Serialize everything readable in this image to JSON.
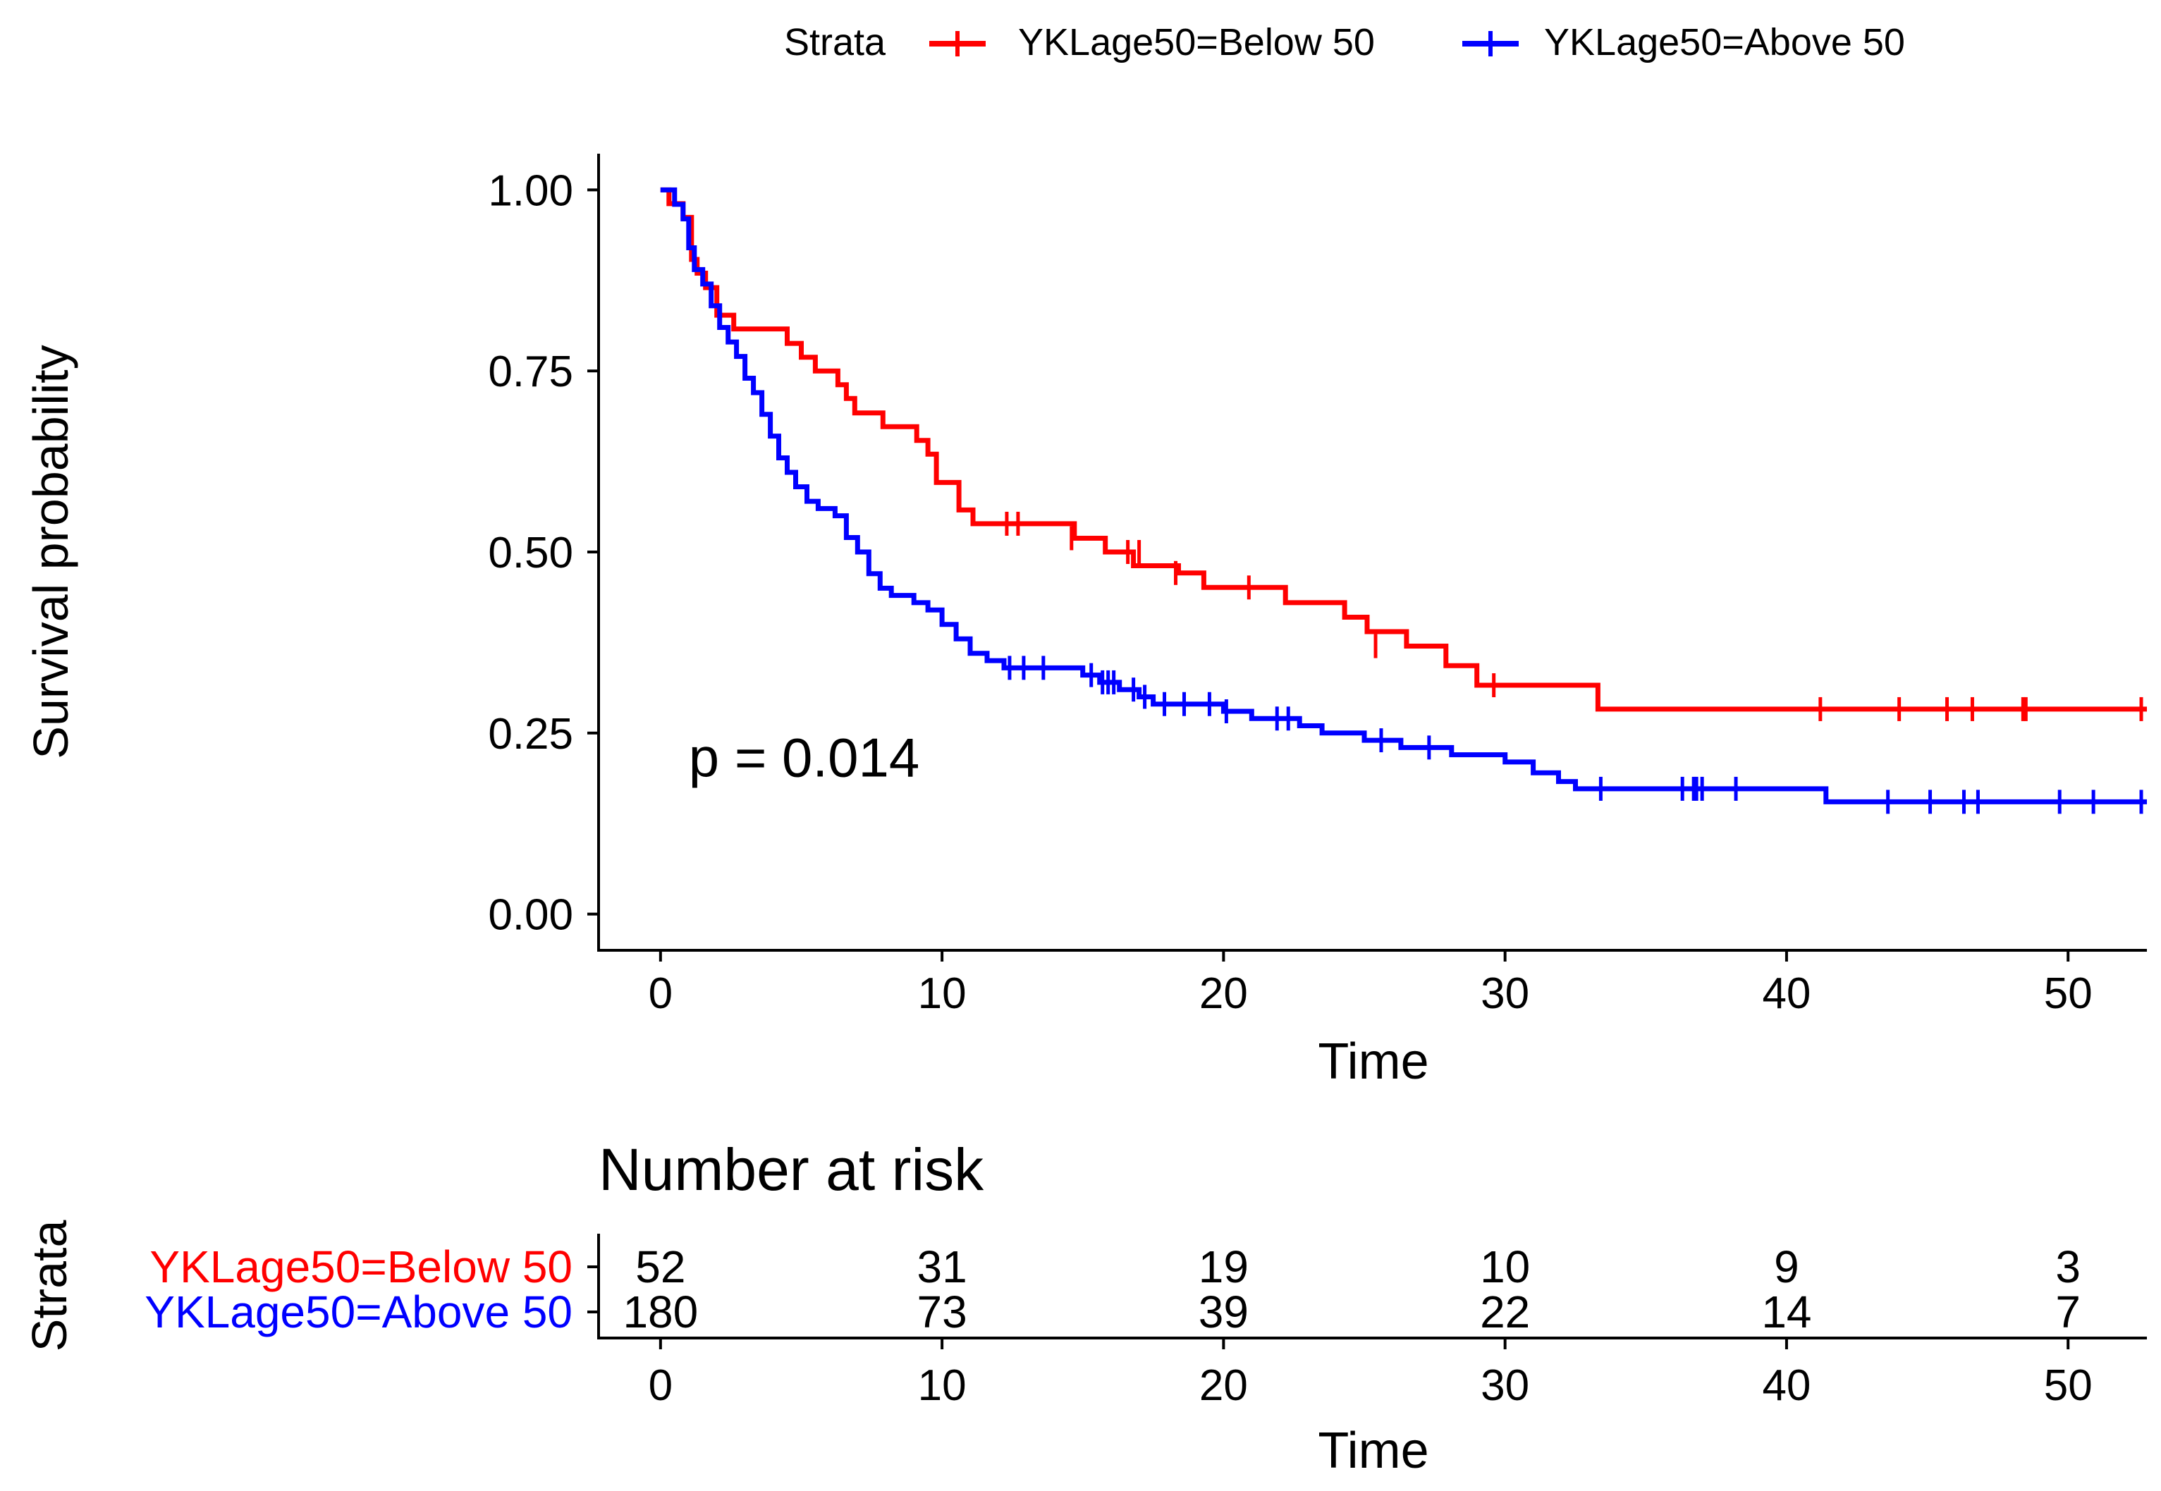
{
  "chart_data": {
    "type": "line",
    "subtype": "kaplan-meier",
    "legend": {
      "title": "Strata",
      "placement": "top",
      "entries": [
        "YKLage50=Below 50",
        "YKLage50=Above 50"
      ]
    },
    "xlabel": "Time",
    "ylabel": "Survival probability",
    "xlim": [
      -2.2,
      52.8
    ],
    "ylim": [
      -0.05,
      1.05
    ],
    "xticks": [
      0,
      10,
      20,
      30,
      40,
      50
    ],
    "xtick_labels": [
      "0",
      "10",
      "20",
      "30",
      "40",
      "50"
    ],
    "yticks": [
      0,
      0.25,
      0.5,
      0.75,
      1.0
    ],
    "ytick_labels": [
      "0.00",
      "0.25",
      "0.50",
      "0.75",
      "1.00"
    ],
    "annotation": "p = 0.014",
    "annotation_pos": {
      "x": 1,
      "y": 0.19
    },
    "series": [
      {
        "name": "YKLage50=Below 50",
        "color": "#FF0000",
        "steps": [
          [
            0,
            1.0
          ],
          [
            0.3,
            0.981
          ],
          [
            0.8,
            0.962
          ],
          [
            1.1,
            0.904
          ],
          [
            1.3,
            0.885
          ],
          [
            1.6,
            0.865
          ],
          [
            2.0,
            0.827
          ],
          [
            2.6,
            0.808
          ],
          [
            3.0,
            0.808
          ],
          [
            4.5,
            0.788
          ],
          [
            5.0,
            0.769
          ],
          [
            5.5,
            0.75
          ],
          [
            6.3,
            0.731
          ],
          [
            6.6,
            0.712
          ],
          [
            6.9,
            0.692
          ],
          [
            7.9,
            0.673
          ],
          [
            9.1,
            0.654
          ],
          [
            9.5,
            0.635
          ],
          [
            9.8,
            0.596
          ],
          [
            10.6,
            0.558
          ],
          [
            11.1,
            0.539
          ],
          [
            13.4,
            0.539
          ],
          [
            14.7,
            0.519
          ],
          [
            15.8,
            0.5
          ],
          [
            16.8,
            0.481
          ],
          [
            18.4,
            0.471
          ],
          [
            19.3,
            0.451
          ],
          [
            21.4,
            0.451
          ],
          [
            22.2,
            0.43
          ],
          [
            24.3,
            0.41
          ],
          [
            25.1,
            0.39
          ],
          [
            26.5,
            0.37
          ],
          [
            27.9,
            0.343
          ],
          [
            29.0,
            0.316
          ],
          [
            31.0,
            0.316
          ],
          [
            33.3,
            0.283
          ],
          [
            52.8,
            0.283
          ]
        ],
        "censors": [
          [
            12.3,
            0.539
          ],
          [
            12.7,
            0.539
          ],
          [
            14.6,
            0.519
          ],
          [
            16.6,
            0.5
          ],
          [
            17.0,
            0.5
          ],
          [
            18.3,
            0.471
          ],
          [
            20.9,
            0.451
          ],
          [
            25.4,
            0.37
          ],
          [
            29.6,
            0.316
          ],
          [
            41.2,
            0.283
          ],
          [
            44.0,
            0.283
          ],
          [
            45.7,
            0.283
          ],
          [
            46.6,
            0.283
          ],
          [
            48.4,
            0.283
          ],
          [
            48.5,
            0.283
          ],
          [
            52.6,
            0.283
          ]
        ],
        "risk_counts": [
          "52",
          "31",
          "19",
          "10",
          "9",
          "3"
        ]
      },
      {
        "name": "YKLage50=Above 50",
        "color": "#0000FF",
        "steps": [
          [
            0,
            1.0
          ],
          [
            0.5,
            0.98
          ],
          [
            0.8,
            0.96
          ],
          [
            1.0,
            0.92
          ],
          [
            1.2,
            0.89
          ],
          [
            1.5,
            0.87
          ],
          [
            1.8,
            0.84
          ],
          [
            2.1,
            0.81
          ],
          [
            2.4,
            0.79
          ],
          [
            2.7,
            0.77
          ],
          [
            3.0,
            0.74
          ],
          [
            3.3,
            0.72
          ],
          [
            3.6,
            0.69
          ],
          [
            3.9,
            0.66
          ],
          [
            4.2,
            0.63
          ],
          [
            4.5,
            0.61
          ],
          [
            4.8,
            0.59
          ],
          [
            5.2,
            0.57
          ],
          [
            5.6,
            0.56
          ],
          [
            6.2,
            0.55
          ],
          [
            6.6,
            0.52
          ],
          [
            7.0,
            0.5
          ],
          [
            7.4,
            0.47
          ],
          [
            7.8,
            0.45
          ],
          [
            8.2,
            0.44
          ],
          [
            9.0,
            0.43
          ],
          [
            9.5,
            0.42
          ],
          [
            10.0,
            0.4
          ],
          [
            10.5,
            0.38
          ],
          [
            11.0,
            0.36
          ],
          [
            11.6,
            0.35
          ],
          [
            12.2,
            0.34
          ],
          [
            15.0,
            0.33
          ],
          [
            15.6,
            0.32
          ],
          [
            16.3,
            0.31
          ],
          [
            17.0,
            0.3
          ],
          [
            17.5,
            0.29
          ],
          [
            20.0,
            0.28
          ],
          [
            21.0,
            0.27
          ],
          [
            22.7,
            0.26
          ],
          [
            23.5,
            0.25
          ],
          [
            25.0,
            0.24
          ],
          [
            26.3,
            0.23
          ],
          [
            28.1,
            0.22
          ],
          [
            30.0,
            0.21
          ],
          [
            31.0,
            0.195
          ],
          [
            31.9,
            0.183
          ],
          [
            32.5,
            0.173
          ],
          [
            41.4,
            0.155
          ],
          [
            52.8,
            0.155
          ]
        ],
        "censors": [
          [
            12.4,
            0.34
          ],
          [
            12.9,
            0.34
          ],
          [
            13.6,
            0.34
          ],
          [
            15.3,
            0.33
          ],
          [
            15.7,
            0.32
          ],
          [
            15.9,
            0.32
          ],
          [
            16.1,
            0.32
          ],
          [
            16.8,
            0.31
          ],
          [
            17.2,
            0.3
          ],
          [
            17.9,
            0.29
          ],
          [
            18.6,
            0.29
          ],
          [
            19.5,
            0.29
          ],
          [
            20.1,
            0.28
          ],
          [
            21.9,
            0.27
          ],
          [
            22.3,
            0.27
          ],
          [
            25.6,
            0.24
          ],
          [
            27.3,
            0.23
          ],
          [
            33.4,
            0.173
          ],
          [
            36.3,
            0.173
          ],
          [
            36.7,
            0.173
          ],
          [
            36.8,
            0.173
          ],
          [
            37.0,
            0.173
          ],
          [
            38.2,
            0.173
          ],
          [
            43.6,
            0.155
          ],
          [
            45.1,
            0.155
          ],
          [
            46.3,
            0.155
          ],
          [
            46.8,
            0.155
          ],
          [
            49.7,
            0.155
          ],
          [
            50.9,
            0.155
          ],
          [
            52.6,
            0.155
          ]
        ],
        "risk_counts": [
          "180",
          "73",
          "39",
          "22",
          "14",
          "7"
        ]
      }
    ],
    "risk_table": {
      "title": "Number at risk",
      "ylabel": "Strata",
      "xlabel": "Time",
      "times": [
        0,
        10,
        20,
        30,
        40,
        50
      ],
      "tick_labels": [
        "0",
        "10",
        "20",
        "30",
        "40",
        "50"
      ]
    }
  }
}
